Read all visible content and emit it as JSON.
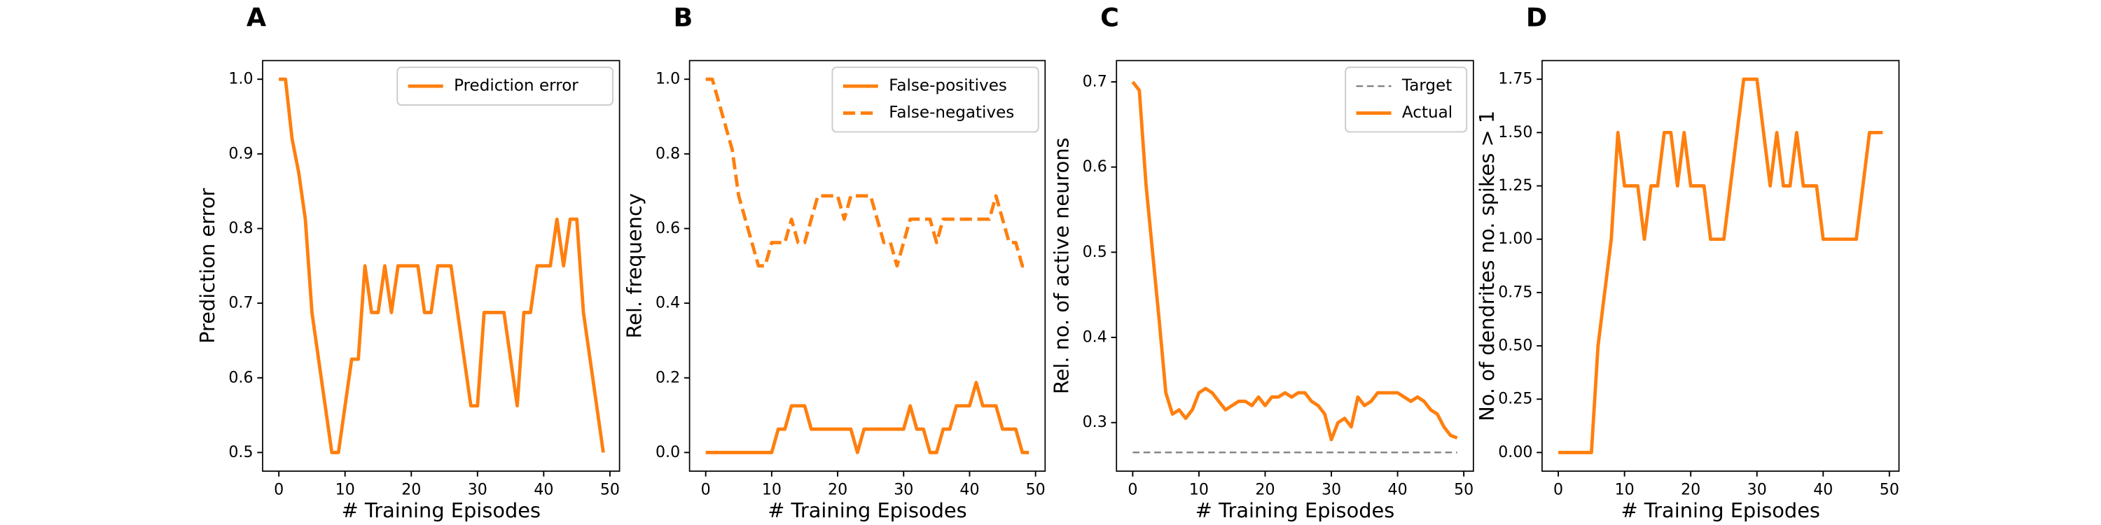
{
  "chart_data": [
    {
      "type": "line",
      "panel": "A",
      "xlabel": "# Training Episodes",
      "ylabel": "Prediction error",
      "x": [
        0,
        1,
        2,
        3,
        4,
        5,
        6,
        7,
        8,
        9,
        10,
        11,
        12,
        13,
        14,
        15,
        16,
        17,
        18,
        19,
        20,
        21,
        22,
        23,
        24,
        25,
        26,
        27,
        28,
        29,
        30,
        31,
        32,
        33,
        34,
        35,
        36,
        37,
        38,
        39,
        40,
        41,
        42,
        43,
        44,
        45,
        46,
        47,
        48,
        49
      ],
      "series": [
        {
          "name": "Prediction error",
          "color": "#ff7f0e",
          "dash": "solid",
          "values": [
            1.0,
            1.0,
            0.92,
            0.875,
            0.8125,
            0.6875,
            0.625,
            0.5625,
            0.5,
            0.5,
            0.5625,
            0.625,
            0.625,
            0.75,
            0.6875,
            0.6875,
            0.75,
            0.6875,
            0.75,
            0.75,
            0.75,
            0.75,
            0.6875,
            0.6875,
            0.75,
            0.75,
            0.75,
            0.6875,
            0.625,
            0.5625,
            0.5625,
            0.6875,
            0.6875,
            0.6875,
            0.6875,
            0.625,
            0.5625,
            0.6875,
            0.6875,
            0.75,
            0.75,
            0.75,
            0.8125,
            0.75,
            0.8125,
            0.8125,
            0.6875,
            0.625,
            0.5625,
            0.5
          ]
        }
      ],
      "xlim": [
        -2.45,
        51.45
      ],
      "xticks": [
        0,
        10,
        20,
        30,
        40,
        50
      ],
      "ylim": [
        0.475,
        1.025
      ],
      "yticks": [
        0.5,
        0.6,
        0.7,
        0.8,
        0.9,
        {
          "value": 1,
          "label": "1.0"
        }
      ],
      "legend": "upper right"
    },
    {
      "type": "line",
      "panel": "B",
      "xlabel": "# Training Episodes",
      "ylabel": "Rel. frequency",
      "x": [
        0,
        1,
        2,
        3,
        4,
        5,
        6,
        7,
        8,
        9,
        10,
        11,
        12,
        13,
        14,
        15,
        16,
        17,
        18,
        19,
        20,
        21,
        22,
        23,
        24,
        25,
        26,
        27,
        28,
        29,
        30,
        31,
        32,
        33,
        34,
        35,
        36,
        37,
        38,
        39,
        40,
        41,
        42,
        43,
        44,
        45,
        46,
        47,
        48,
        49
      ],
      "series": [
        {
          "name": "False-positives",
          "color": "#ff7f0e",
          "dash": "solid",
          "values": [
            0,
            0,
            0,
            0,
            0,
            0,
            0,
            0,
            0,
            0,
            0,
            0.0625,
            0.0625,
            0.125,
            0.125,
            0.125,
            0.0625,
            0.0625,
            0.0625,
            0.0625,
            0.0625,
            0.0625,
            0.0625,
            0,
            0.0625,
            0.0625,
            0.0625,
            0.0625,
            0.0625,
            0.0625,
            0.0625,
            0.125,
            0.0625,
            0.0625,
            0,
            0,
            0.0625,
            0.0625,
            0.125,
            0.125,
            0.125,
            0.1875,
            0.125,
            0.125,
            0.125,
            0.0625,
            0.0625,
            0.0625,
            0,
            0
          ]
        },
        {
          "name": "False-negatives",
          "color": "#ff7f0e",
          "dash": "dashed",
          "values": [
            1.0,
            1.0,
            0.9375,
            0.875,
            0.8125,
            0.6875,
            0.625,
            0.5625,
            0.5,
            0.5,
            0.5625,
            0.5625,
            0.5625,
            0.625,
            0.5625,
            0.5625,
            0.625,
            0.6875,
            0.6875,
            0.6875,
            0.6875,
            0.625,
            0.6875,
            0.6875,
            0.6875,
            0.6875,
            0.625,
            0.5625,
            0.5625,
            0.5,
            0.5625,
            0.625,
            0.625,
            0.625,
            0.625,
            0.5625,
            0.625,
            0.625,
            0.625,
            0.625,
            0.625,
            0.625,
            0.625,
            0.625,
            0.6875,
            0.625,
            0.5625,
            0.5625,
            0.5,
            0.5
          ]
        }
      ],
      "xlim": [
        -2.45,
        51.45
      ],
      "xticks": [
        0,
        10,
        20,
        30,
        40,
        50
      ],
      "ylim": [
        -0.05,
        1.05
      ],
      "yticks": [
        {
          "value": 0,
          "label": "0.0"
        },
        0.2,
        0.4,
        0.6,
        0.8,
        {
          "value": 1,
          "label": "1.0"
        }
      ],
      "legend": "upper right"
    },
    {
      "type": "line",
      "panel": "C",
      "xlabel": "# Training Episodes",
      "ylabel": "Rel. no. of active neurons",
      "x": [
        0,
        1,
        2,
        3,
        4,
        5,
        6,
        7,
        8,
        9,
        10,
        11,
        12,
        13,
        14,
        15,
        16,
        17,
        18,
        19,
        20,
        21,
        22,
        23,
        24,
        25,
        26,
        27,
        28,
        29,
        30,
        31,
        32,
        33,
        34,
        35,
        36,
        37,
        38,
        39,
        40,
        41,
        42,
        43,
        44,
        45,
        46,
        47,
        48,
        49
      ],
      "series": [
        {
          "name": "Target",
          "color": "#808080",
          "dash": "dashed",
          "x": [
            0,
            49
          ],
          "values": [
            0.265,
            0.265
          ]
        },
        {
          "name": "Actual",
          "color": "#ff7f0e",
          "dash": "solid",
          "values": [
            0.7,
            0.69,
            0.58,
            0.5,
            0.42,
            0.335,
            0.31,
            0.315,
            0.305,
            0.315,
            0.335,
            0.34,
            0.335,
            0.325,
            0.315,
            0.32,
            0.325,
            0.325,
            0.32,
            0.33,
            0.32,
            0.33,
            0.33,
            0.335,
            0.33,
            0.335,
            0.335,
            0.325,
            0.32,
            0.31,
            0.28,
            0.3,
            0.305,
            0.295,
            0.33,
            0.32,
            0.325,
            0.335,
            0.335,
            0.335,
            0.335,
            0.33,
            0.325,
            0.33,
            0.325,
            0.315,
            0.31,
            0.295,
            0.285,
            0.282
          ]
        }
      ],
      "xlim": [
        -2.45,
        51.45
      ],
      "xticks": [
        0,
        10,
        20,
        30,
        40,
        50
      ],
      "ylim": [
        0.243,
        0.725
      ],
      "yticks": [
        0.3,
        0.4,
        0.5,
        0.6,
        0.7
      ],
      "legend": "upper right"
    },
    {
      "type": "line",
      "panel": "D",
      "xlabel": "# Training Episodes",
      "ylabel": "No. of dendrites no. spikes > 1",
      "x": [
        0,
        1,
        2,
        3,
        4,
        5,
        6,
        7,
        8,
        9,
        10,
        11,
        12,
        13,
        14,
        15,
        16,
        17,
        18,
        19,
        20,
        21,
        22,
        23,
        24,
        25,
        26,
        27,
        28,
        29,
        30,
        31,
        32,
        33,
        34,
        35,
        36,
        37,
        38,
        39,
        40,
        41,
        42,
        43,
        44,
        45,
        46,
        47,
        48,
        49
      ],
      "series": [
        {
          "color": "#ff7f0e",
          "dash": "solid",
          "values": [
            0,
            0,
            0,
            0,
            0,
            0,
            0.5,
            0.75,
            1.0,
            1.5,
            1.25,
            1.25,
            1.25,
            1.0,
            1.25,
            1.25,
            1.5,
            1.5,
            1.25,
            1.5,
            1.25,
            1.25,
            1.25,
            1.0,
            1.0,
            1.0,
            1.25,
            1.5,
            1.75,
            1.75,
            1.75,
            1.5,
            1.25,
            1.5,
            1.25,
            1.25,
            1.5,
            1.25,
            1.25,
            1.25,
            1.0,
            1.0,
            1.0,
            1.0,
            1.0,
            1.0,
            1.25,
            1.5,
            1.5,
            1.5
          ]
        }
      ],
      "xlim": [
        -2.45,
        51.45
      ],
      "xticks": [
        0,
        10,
        20,
        30,
        40,
        50
      ],
      "ylim": [
        -0.0875,
        1.8375
      ],
      "yticks": [
        {
          "value": 0,
          "label": "0.00"
        },
        0.25,
        {
          "value": 0.5,
          "label": "0.50"
        },
        0.75,
        {
          "value": 1,
          "label": "1.00"
        },
        1.25,
        {
          "value": 1.5,
          "label": "1.50"
        },
        1.75
      ]
    }
  ]
}
